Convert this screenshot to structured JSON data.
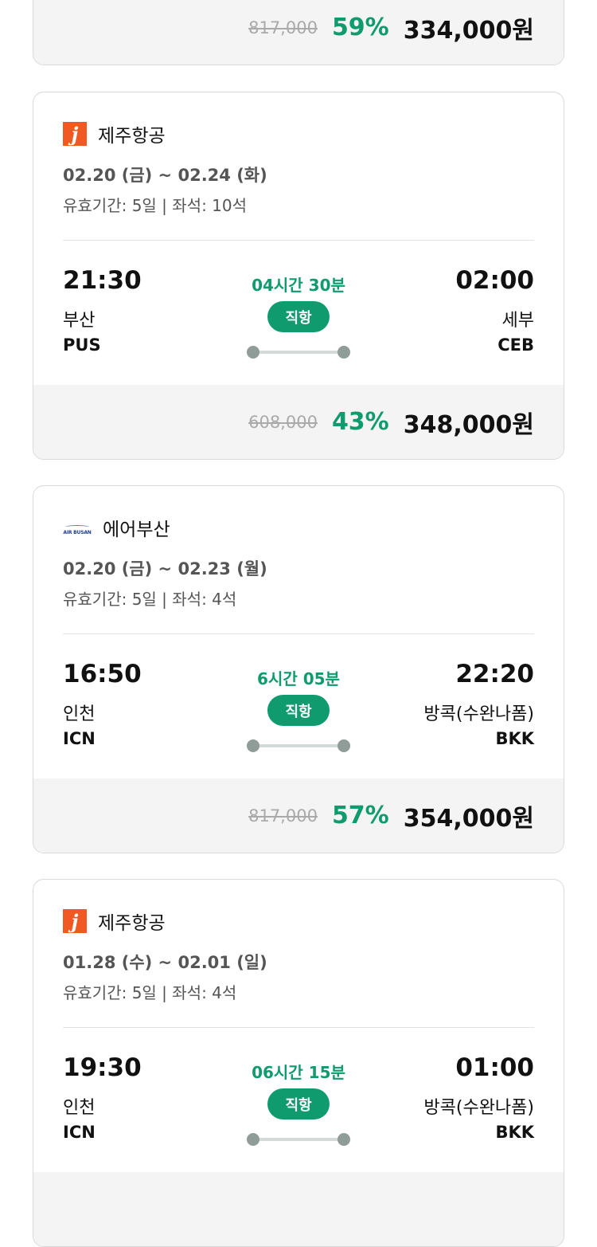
{
  "colors": {
    "accent": "#0f9b6e",
    "jeju": "#f05a22",
    "airbusan": "#1d3c8f"
  },
  "first_card_footer": {
    "original": "817,000",
    "discount": "59%",
    "price": "334,000원"
  },
  "cards": [
    {
      "airline": "제주항공",
      "logo": "jeju-air-logo",
      "logo_text": "J",
      "dates": "02.20 (금) ~ 02.24 (화)",
      "validity": "유효기간: 5일 | 좌석: 10석",
      "dep_time": "21:30",
      "dep_city": "부산",
      "dep_code": "PUS",
      "duration": "04시간 30분",
      "type": "직항",
      "arr_time": "02:00",
      "arr_city": "세부",
      "arr_code": "CEB",
      "original": "608,000",
      "discount": "43%",
      "price": "348,000원"
    },
    {
      "airline": "에어부산",
      "logo": "air-busan-logo",
      "logo_text": "AIR BUSAN",
      "dates": "02.20 (금) ~ 02.23 (월)",
      "validity": "유효기간: 5일 | 좌석: 4석",
      "dep_time": "16:50",
      "dep_city": "인천",
      "dep_code": "ICN",
      "duration": "6시간 05분",
      "type": "직항",
      "arr_time": "22:20",
      "arr_city": "방콕(수완나폼)",
      "arr_code": "BKK",
      "original": "817,000",
      "discount": "57%",
      "price": "354,000원"
    },
    {
      "airline": "제주항공",
      "logo": "jeju-air-logo",
      "logo_text": "J",
      "dates": "01.28 (수) ~ 02.01 (일)",
      "validity": "유효기간: 5일 | 좌석: 4석",
      "dep_time": "19:30",
      "dep_city": "인천",
      "dep_code": "ICN",
      "duration": "06시간 15분",
      "type": "직항",
      "arr_time": "01:00",
      "arr_city": "방콕(수완나폼)",
      "arr_code": "BKK"
    }
  ]
}
